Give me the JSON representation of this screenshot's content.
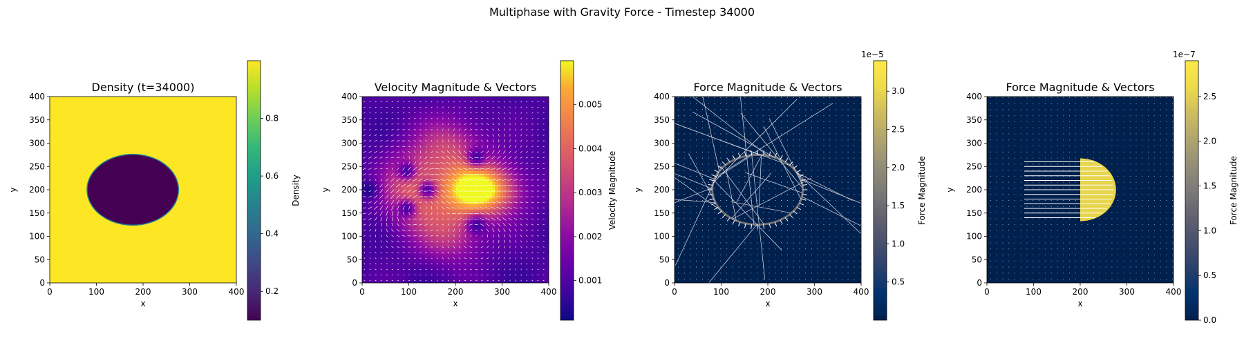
{
  "figure": {
    "suptitle": "Multiphase with Gravity Force - Timestep 34000"
  },
  "chart_data": [
    {
      "type": "heatmap",
      "title": "Density (t=34000)",
      "xlabel": "x",
      "ylabel": "y",
      "xlim": [
        0,
        400
      ],
      "ylim": [
        0,
        400
      ],
      "xticks": [
        0,
        100,
        200,
        300,
        400
      ],
      "yticks": [
        0,
        50,
        100,
        150,
        200,
        250,
        300,
        350,
        400
      ],
      "colormap": "viridis",
      "colorbar": {
        "label": "Density",
        "range": [
          0.1,
          1.0
        ],
        "ticks": [
          0.2,
          0.4,
          0.6,
          0.8
        ],
        "offset_text": ""
      },
      "field": {
        "background_value": 1.0,
        "drop_value": 0.1,
        "drop_center": [
          178,
          200
        ],
        "drop_radii": [
          97,
          75
        ]
      }
    },
    {
      "type": "heatmap",
      "title": "Velocity Magnitude & Vectors",
      "xlabel": "x",
      "ylabel": "y",
      "xlim": [
        0,
        400
      ],
      "ylim": [
        0,
        400
      ],
      "xticks": [
        0,
        100,
        200,
        300,
        400
      ],
      "yticks": [
        0,
        50,
        100,
        150,
        200,
        250,
        300,
        350,
        400
      ],
      "colormap": "plasma",
      "colorbar": {
        "label": "Velocity Magnitude",
        "range": [
          0.0001,
          0.006
        ],
        "ticks": [
          0.001,
          0.002,
          0.003,
          0.004,
          0.005
        ],
        "offset_text": ""
      },
      "field": {
        "hotspot_center": [
          250,
          200
        ],
        "peak": 0.006,
        "vortex_centers": [
          [
            95,
            240
          ],
          [
            95,
            160
          ],
          [
            245,
            270
          ],
          [
            245,
            125
          ],
          [
            15,
            200
          ],
          [
            140,
            200
          ]
        ]
      }
    },
    {
      "type": "heatmap",
      "title": "Force Magnitude & Vectors",
      "xlabel": "x",
      "ylabel": "y",
      "xlim": [
        0,
        400
      ],
      "ylim": [
        0,
        400
      ],
      "xticks": [
        0,
        100,
        200,
        300,
        400
      ],
      "yticks": [
        0,
        50,
        100,
        150,
        200,
        250,
        300,
        350,
        400
      ],
      "colormap": "cividis",
      "colorbar": {
        "label": "Force Magnitude",
        "range": [
          0,
          3.4
        ],
        "ticks": [
          0.5,
          1.0,
          1.5,
          2.0,
          2.5,
          3.0
        ],
        "offset_text": "1e−5"
      },
      "field": {
        "ring_center": [
          178,
          200
        ],
        "ring_radii": [
          97,
          75
        ]
      }
    },
    {
      "type": "heatmap",
      "title": "Force Magnitude & Vectors",
      "xlabel": "x",
      "ylabel": "y",
      "xlim": [
        0,
        400
      ],
      "ylim": [
        0,
        400
      ],
      "xticks": [
        0,
        100,
        200,
        300,
        400
      ],
      "yticks": [
        0,
        50,
        100,
        150,
        200,
        250,
        300,
        350,
        400
      ],
      "colormap": "cividis",
      "colorbar": {
        "label": "Force Magnitude",
        "range": [
          0,
          2.9
        ],
        "ticks": [
          0.0,
          0.5,
          1.0,
          1.5,
          2.0,
          2.5
        ],
        "offset_text": "1e−7"
      },
      "field": {
        "half_disc_center": [
          200,
          200
        ],
        "half_disc_radii": [
          75,
          68
        ],
        "arrow_rows_y_range": [
          140,
          262
        ],
        "arrow_x_start": 80
      }
    }
  ]
}
